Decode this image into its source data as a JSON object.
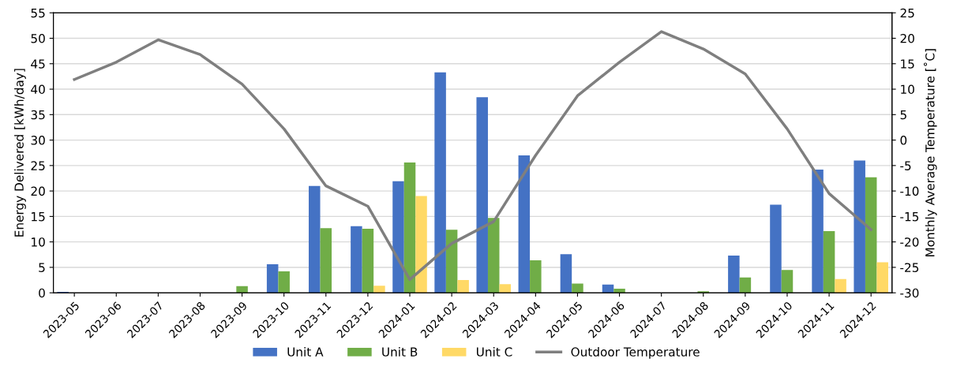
{
  "chart_data": {
    "type": "bar",
    "ylabel": "Energy Delivered [kWh/day]",
    "y2label": "Monthly Average Temperature [˚C]",
    "categories": [
      "2023-05",
      "2023-06",
      "2023-07",
      "2023-08",
      "2023-09",
      "2023-10",
      "2023-11",
      "2023-12",
      "2024-01",
      "2024-02",
      "2024-03",
      "2024-04",
      "2024-05",
      "2024-06",
      "2024-07",
      "2024-08",
      "2024-09",
      "2024-10",
      "2024-11",
      "2024-12"
    ],
    "series": [
      {
        "name": "Unit A",
        "color": "#4472c4",
        "values": [
          0.2,
          0,
          0,
          0,
          0,
          5.6,
          21.0,
          13.1,
          21.9,
          43.3,
          38.4,
          27.0,
          7.6,
          1.6,
          0,
          0,
          7.3,
          17.3,
          24.2,
          26.0
        ]
      },
      {
        "name": "Unit B",
        "color": "#70ad47",
        "values": [
          0,
          0,
          0,
          0,
          1.3,
          4.2,
          12.7,
          12.6,
          25.6,
          12.4,
          14.7,
          6.4,
          1.8,
          0.8,
          0,
          0.3,
          3.0,
          4.5,
          12.1,
          22.7
        ]
      },
      {
        "name": "Unit C",
        "color": "#ffd966",
        "values": [
          0,
          0,
          0,
          0,
          0,
          0,
          null,
          1.4,
          19.0,
          2.5,
          1.7,
          0,
          0,
          0,
          0,
          0,
          0,
          0,
          2.7,
          6.0
        ]
      },
      {
        "name": "Outdoor Temperature",
        "color": "#7f7f7f",
        "type": "line",
        "axis": "y2",
        "values": [
          11.9,
          15.3,
          19.7,
          16.8,
          11.0,
          2.2,
          -9.0,
          -13.0,
          -27.4,
          -20.3,
          -16.0,
          -3.0,
          8.7,
          15.3,
          21.3,
          17.9,
          13.0,
          2.2,
          -10.5,
          -17.6
        ]
      }
    ],
    "ylim": [
      0,
      55
    ],
    "yticks": [
      0,
      5,
      10,
      15,
      20,
      25,
      30,
      35,
      40,
      45,
      50,
      55
    ],
    "y2lim": [
      -30,
      25
    ],
    "y2ticks": [
      -30,
      -25,
      -20,
      -15,
      -10,
      -5,
      0,
      5,
      10,
      15,
      20,
      25
    ],
    "grid": "y",
    "legend": "bottom",
    "marker": "none",
    "line_style": "solid"
  }
}
